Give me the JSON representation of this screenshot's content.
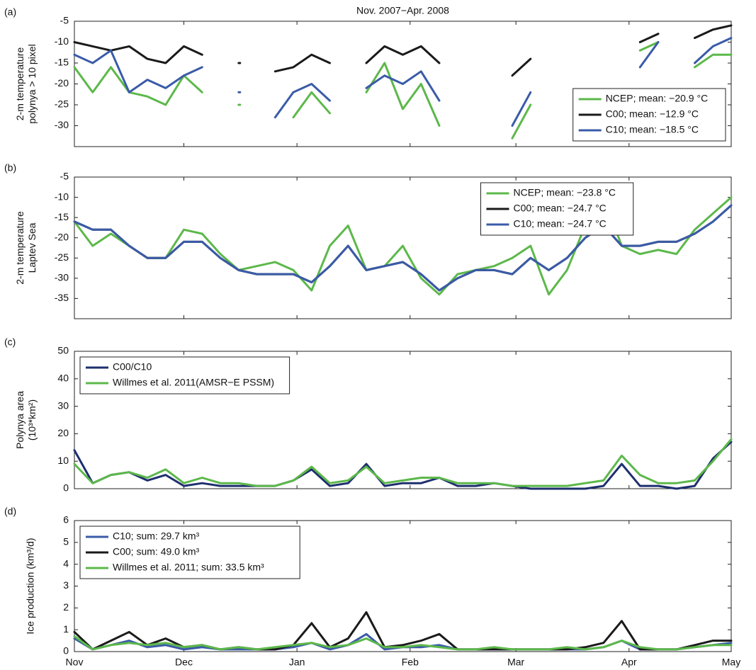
{
  "chart_data": [
    {
      "type": "line",
      "label": "(a)",
      "title": "Nov. 2007−Apr. 2008",
      "ylabel": [
        "2-m temperature",
        "polynya > 10 pixel"
      ],
      "x": [
        0,
        5,
        10,
        15,
        20,
        25,
        30,
        35,
        40,
        45,
        50,
        55,
        60,
        65,
        70,
        75,
        80,
        85,
        90,
        95,
        100,
        105,
        110,
        115,
        120,
        125,
        130,
        135,
        140,
        145,
        150,
        155,
        160,
        165,
        170,
        175,
        180
      ],
      "xlim": [
        0,
        180
      ],
      "xticks": [
        0,
        30,
        61,
        92,
        121,
        152,
        182
      ],
      "ylim": [
        -35,
        -5
      ],
      "yticks": [
        -30,
        -25,
        -20,
        -15,
        -10,
        -5
      ],
      "legend_loc": "lower right",
      "series": [
        {
          "name": "NCEP; mean:  −20.9 °C",
          "color": "#5cb84a",
          "values": [
            -16,
            -22,
            -16,
            -22,
            -23,
            -25,
            -18,
            -22,
            null,
            -25,
            null,
            null,
            -28,
            -22,
            -27,
            null,
            -22,
            -15,
            -26,
            -20,
            -30,
            null,
            null,
            null,
            -33,
            -25,
            null,
            null,
            null,
            null,
            null,
            -12,
            -10,
            null,
            -16,
            -13,
            -13
          ]
        },
        {
          "name": "C00; mean:  −12.9 °C",
          "color": "#1a1a1a",
          "values": [
            -10,
            -11,
            -12,
            -11,
            -14,
            -15,
            -11,
            -13,
            null,
            -15,
            null,
            -17,
            -16,
            -13,
            -15,
            null,
            -15,
            -11,
            -13,
            -11,
            -15,
            null,
            null,
            null,
            -18,
            -14,
            null,
            null,
            null,
            null,
            null,
            -10,
            -8,
            null,
            -9,
            -7,
            -6
          ]
        },
        {
          "name": "C10; mean:  −18.5 °C",
          "color": "#3a5ba8",
          "values": [
            -13,
            -15,
            -12,
            -22,
            -19,
            -21,
            -18,
            -16,
            null,
            -22,
            null,
            -28,
            -22,
            -20,
            -24,
            null,
            -21,
            -18,
            -20,
            -17,
            -24,
            null,
            null,
            null,
            -30,
            -22,
            null,
            null,
            null,
            null,
            null,
            -16,
            -10,
            null,
            -15,
            -11,
            -9
          ]
        }
      ]
    },
    {
      "type": "line",
      "label": "(b)",
      "ylabel": [
        "2-m temperature",
        "Laptev Sea"
      ],
      "x": [
        0,
        5,
        10,
        15,
        20,
        25,
        30,
        35,
        40,
        45,
        50,
        55,
        60,
        65,
        70,
        75,
        80,
        85,
        90,
        95,
        100,
        105,
        110,
        115,
        120,
        125,
        130,
        135,
        140,
        145,
        150,
        155,
        160,
        165,
        170,
        175,
        180
      ],
      "xlim": [
        0,
        180
      ],
      "xticks": [
        0,
        30,
        61,
        92,
        121,
        152,
        182
      ],
      "ylim": [
        -40,
        -5
      ],
      "yticks": [
        -35,
        -30,
        -25,
        -20,
        -15,
        -10,
        -5
      ],
      "legend_loc": "upper center",
      "series": [
        {
          "name": "NCEP; mean:  −23.8 °C",
          "color": "#5cb84a",
          "values": [
            -16,
            -22,
            -19,
            -22,
            -25,
            -25,
            -18,
            -19,
            -24,
            -28,
            -27,
            -26,
            -28,
            -33,
            -22,
            -17,
            -28,
            -27,
            -22,
            -30,
            -34,
            -29,
            -28,
            -27,
            -25,
            -22,
            -34,
            -28,
            -17,
            -10,
            -22,
            -24,
            -23,
            -24,
            -18,
            -14,
            -10
          ]
        },
        {
          "name": "C00; mean:  −24.7 °C",
          "color": "#1a1a1a",
          "values": [
            -16,
            -18,
            -18,
            -22,
            -25,
            -25,
            -21,
            -21,
            -25,
            -28,
            -29,
            -29,
            -29,
            -31,
            -27,
            -22,
            -28,
            -27,
            -26,
            -29,
            -33,
            -30,
            -28,
            -28,
            -29,
            -25,
            -28,
            -25,
            -20,
            -17,
            -22,
            -22,
            -21,
            -21,
            -19,
            -16,
            -12
          ]
        },
        {
          "name": "C10; mean:  −24.7 °C",
          "color": "#3a5ba8",
          "values": [
            -16,
            -18,
            -18,
            -22,
            -25,
            -25,
            -21,
            -21,
            -25,
            -28,
            -29,
            -29,
            -29,
            -31,
            -27,
            -22,
            -28,
            -27,
            -26,
            -29,
            -33,
            -30,
            -28,
            -28,
            -29,
            -25,
            -28,
            -25,
            -20,
            -17,
            -22,
            -22,
            -21,
            -21,
            -19,
            -16,
            -12
          ]
        }
      ]
    },
    {
      "type": "line",
      "label": "(c)",
      "ylabel": [
        "Polynya area",
        "(10³*km²)"
      ],
      "x": [
        0,
        5,
        10,
        15,
        20,
        25,
        30,
        35,
        40,
        45,
        50,
        55,
        60,
        65,
        70,
        75,
        80,
        85,
        90,
        95,
        100,
        105,
        110,
        115,
        120,
        125,
        130,
        135,
        140,
        145,
        150,
        155,
        160,
        165,
        170,
        175,
        180
      ],
      "xlim": [
        0,
        180
      ],
      "xticks": [
        0,
        30,
        61,
        92,
        121,
        152,
        182
      ],
      "ylim": [
        0,
        50
      ],
      "yticks": [
        0,
        10,
        20,
        30,
        40,
        50
      ],
      "legend_loc": "upper left",
      "series": [
        {
          "name": "C00/C10",
          "color": "#1e2f6e",
          "values": [
            14,
            2,
            5,
            6,
            3,
            5,
            1,
            2,
            1,
            1,
            1,
            1,
            3,
            7,
            1,
            2,
            9,
            1,
            2,
            2,
            4,
            1,
            1,
            2,
            1,
            0,
            0,
            0,
            0,
            1,
            9,
            1,
            1,
            0,
            1,
            11,
            17
          ]
        },
        {
          "name": "Willmes et al. 2011(AMSR−E PSSM)",
          "color": "#5cb84a",
          "values": [
            9,
            2,
            5,
            6,
            4,
            7,
            2,
            4,
            2,
            2,
            1,
            1,
            3,
            8,
            2,
            3,
            8,
            2,
            3,
            4,
            4,
            2,
            2,
            2,
            1,
            1,
            1,
            1,
            2,
            3,
            12,
            5,
            2,
            2,
            3,
            10,
            18
          ]
        }
      ]
    },
    {
      "type": "line",
      "label": "(d)",
      "ylabel": [
        "Ice production (km³/d)"
      ],
      "x": [
        0,
        5,
        10,
        15,
        20,
        25,
        30,
        35,
        40,
        45,
        50,
        55,
        60,
        65,
        70,
        75,
        80,
        85,
        90,
        95,
        100,
        105,
        110,
        115,
        120,
        125,
        130,
        135,
        140,
        145,
        150,
        155,
        160,
        165,
        170,
        175,
        180
      ],
      "xlim": [
        0,
        180
      ],
      "xticks": [
        {
          "value": 0,
          "label": "Nov"
        },
        {
          "value": 30,
          "label": "Dec"
        },
        {
          "value": 61,
          "label": "Jan"
        },
        {
          "value": 92,
          "label": "Feb"
        },
        {
          "value": 121,
          "label": "Mar"
        },
        {
          "value": 152,
          "label": "Apr"
        },
        {
          "value": 182,
          "label": "May"
        }
      ],
      "ylim": [
        0,
        6
      ],
      "yticks": [
        0,
        1,
        2,
        3,
        4,
        5,
        6
      ],
      "legend_loc": "upper left",
      "series": [
        {
          "name": "C10; sum: 29.7 km³",
          "color": "#3a5ba8",
          "values": [
            0.6,
            0.1,
            0.3,
            0.5,
            0.2,
            0.3,
            0.1,
            0.2,
            0.1,
            0.1,
            0.1,
            0.1,
            0.2,
            0.4,
            0.1,
            0.3,
            0.8,
            0.1,
            0.2,
            0.2,
            0.3,
            0.1,
            0.1,
            0.1,
            0.1,
            0.1,
            0.1,
            0.1,
            0.1,
            0.2,
            0.5,
            0.1,
            0.1,
            0.1,
            0.2,
            0.3,
            0.4
          ]
        },
        {
          "name": "C00; sum: 49.0 km³",
          "color": "#1a1a1a",
          "values": [
            0.9,
            0.1,
            0.5,
            0.9,
            0.3,
            0.6,
            0.2,
            0.3,
            0.1,
            0.2,
            0.1,
            0.1,
            0.3,
            1.3,
            0.2,
            0.6,
            1.8,
            0.2,
            0.3,
            0.5,
            0.8,
            0.1,
            0.1,
            0.1,
            0.1,
            0.1,
            0.1,
            0.1,
            0.2,
            0.4,
            1.4,
            0.1,
            0.1,
            0.1,
            0.3,
            0.5,
            0.5
          ]
        },
        {
          "name": "Willmes et al. 2011; sum: 33.5 km³",
          "color": "#5cb84a",
          "values": [
            0.7,
            0.1,
            0.3,
            0.4,
            0.3,
            0.4,
            0.2,
            0.3,
            0.1,
            0.2,
            0.1,
            0.2,
            0.3,
            0.4,
            0.2,
            0.3,
            0.6,
            0.2,
            0.2,
            0.3,
            0.2,
            0.1,
            0.1,
            0.2,
            0.1,
            0.1,
            0.1,
            0.2,
            0.1,
            0.2,
            0.5,
            0.2,
            0.1,
            0.1,
            0.2,
            0.3,
            0.3
          ]
        }
      ]
    }
  ]
}
